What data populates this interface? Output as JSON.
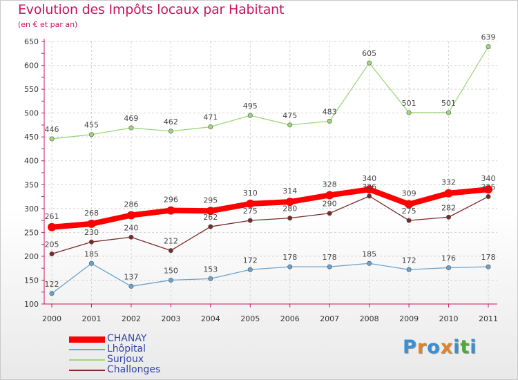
{
  "title": "Evolution des Impôts locaux par Habitant",
  "subtitle": "(en € et par an)",
  "logo": {
    "letters": [
      "P",
      "r",
      "o",
      "x",
      "i",
      "t",
      "i"
    ],
    "colors": [
      "#3a8fd1",
      "#e0832a",
      "#3a8fd1",
      "#e0832a",
      "#3a8fd1",
      "#4caa3a",
      "#3a8fd1"
    ]
  },
  "chart_data": {
    "type": "line",
    "x": [
      "2000",
      "2001",
      "2002",
      "2003",
      "2004",
      "2005",
      "2006",
      "2007",
      "2008",
      "2009",
      "2010",
      "2011"
    ],
    "ylim": [
      100,
      650
    ],
    "yticks": [
      "100",
      "150",
      "200",
      "250",
      "300",
      "350",
      "400",
      "450",
      "500",
      "550",
      "600",
      "650"
    ],
    "grid": true,
    "legend_position": "bottom-left",
    "series": [
      {
        "name": "CHANAY",
        "color": "#ff0000",
        "values": [
          261,
          268,
          286,
          296,
          295,
          310,
          314,
          328,
          340,
          309,
          332,
          340
        ],
        "labels": [
          "261",
          "268",
          "286",
          "296",
          "295",
          "310",
          "314",
          "328",
          "340",
          "309",
          "332",
          "340"
        ]
      },
      {
        "name": "Lhôpital",
        "color": "#6aa3cf",
        "values": [
          122,
          185,
          137,
          150,
          153,
          172,
          178,
          178,
          185,
          172,
          176,
          178
        ],
        "labels": [
          "122",
          "185",
          "137",
          "150",
          "153",
          "172",
          "178",
          "178",
          "185",
          "172",
          "176",
          "178"
        ]
      },
      {
        "name": "Surjoux",
        "color": "#9fd67a",
        "values": [
          446,
          455,
          469,
          462,
          471,
          495,
          475,
          483,
          605,
          501,
          501,
          639
        ],
        "labels": [
          "446",
          "455",
          "469",
          "462",
          "471",
          "495",
          "475",
          "483",
          "605",
          "501",
          "501",
          "639"
        ]
      },
      {
        "name": "Challonges",
        "color": "#7a2a2a",
        "values": [
          205,
          230,
          240,
          212,
          262,
          275,
          280,
          290,
          326,
          275,
          282,
          325
        ],
        "labels": [
          "205",
          "230",
          "240",
          "212",
          "262",
          "275",
          "280",
          "290",
          "326",
          "275",
          "282",
          "325"
        ]
      }
    ]
  }
}
